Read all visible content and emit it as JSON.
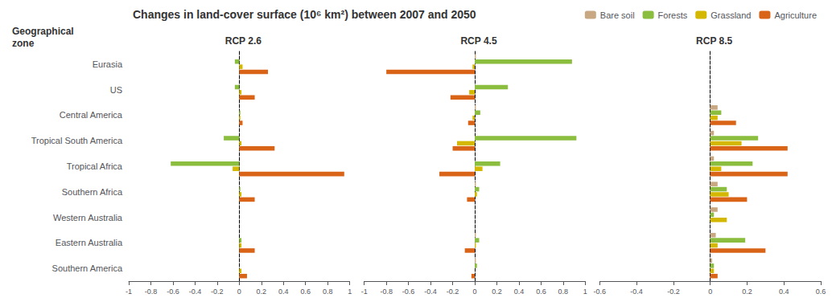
{
  "chart_data": [
    {
      "type": "bar",
      "orientation": "horizontal",
      "title": "Changes in land-cover surface (10⁶ km²) between 2007 and 2050",
      "ylabel": "Geographical\nzone",
      "subtitle": "RCP 2.6",
      "categories": [
        "Eurasia",
        "US",
        "Central America",
        "Tropical South America",
        "Tropical Africa",
        "Southern Africa",
        "Western Australia",
        "Eastern Australia",
        "Southern America"
      ],
      "series": [
        {
          "name": "Bare soil",
          "color": "#C8A882",
          "values": [
            0.0,
            0.0,
            0.0,
            0.0,
            0.0,
            0.0,
            0.0,
            0.0,
            0.0
          ]
        },
        {
          "name": "Forests",
          "color": "#8BBD3E",
          "values": [
            -0.04,
            -0.04,
            0.01,
            -0.14,
            -0.62,
            0.01,
            0.0,
            0.02,
            0.0
          ]
        },
        {
          "name": "Grassland",
          "color": "#D4B800",
          "values": [
            0.03,
            0.02,
            0.01,
            0.02,
            -0.06,
            0.02,
            0.0,
            0.02,
            0.02
          ]
        },
        {
          "name": "Agriculture",
          "color": "#D96418",
          "values": [
            0.26,
            0.14,
            0.03,
            0.32,
            0.95,
            0.14,
            0.0,
            0.14,
            0.07
          ]
        }
      ],
      "xlim": [
        -1,
        1
      ],
      "xticks": [
        -1,
        -0.8,
        -0.6,
        -0.4,
        -0.2,
        0,
        0.2,
        0.4,
        0.6,
        0.8,
        1
      ],
      "grid": false
    },
    {
      "type": "bar",
      "orientation": "horizontal",
      "subtitle": "RCP 4.5",
      "categories": [
        "Eurasia",
        "US",
        "Central America",
        "Tropical South America",
        "Tropical Africa",
        "Southern Africa",
        "Western Australia",
        "Eastern Australia",
        "Southern America"
      ],
      "series": [
        {
          "name": "Bare soil",
          "color": "#C8A882",
          "values": [
            0.01,
            0.0,
            0.01,
            0.0,
            0.0,
            0.01,
            0.0,
            0.01,
            0.01
          ]
        },
        {
          "name": "Forests",
          "color": "#8BBD3E",
          "values": [
            0.88,
            0.3,
            0.05,
            0.92,
            0.23,
            0.04,
            0.0,
            0.04,
            0.02
          ]
        },
        {
          "name": "Grassland",
          "color": "#D4B800",
          "values": [
            -0.02,
            -0.05,
            -0.02,
            -0.16,
            0.07,
            0.02,
            0.0,
            0.01,
            0.0
          ]
        },
        {
          "name": "Agriculture",
          "color": "#D96418",
          "values": [
            -0.8,
            -0.22,
            -0.06,
            -0.2,
            -0.32,
            -0.07,
            0.0,
            -0.09,
            -0.03
          ]
        }
      ],
      "xlim": [
        -1,
        1
      ],
      "xticks": [
        -1,
        -0.8,
        -0.6,
        -0.4,
        -0.2,
        0,
        0.2,
        0.4,
        0.6,
        0.8,
        1
      ],
      "grid": false
    },
    {
      "type": "bar",
      "orientation": "horizontal",
      "subtitle": "RCP 8.5",
      "categories": [
        "Eurasia",
        "US",
        "Central America",
        "Tropical South America",
        "Tropical Africa",
        "Southern Africa",
        "Western Australia",
        "Eastern Australia",
        "Southern America"
      ],
      "series": [
        {
          "name": "Bare soil",
          "color": "#C8A882",
          "values": [
            0.0,
            0.0,
            0.04,
            0.02,
            0.02,
            0.04,
            0.04,
            0.03,
            0.01
          ]
        },
        {
          "name": "Forests",
          "color": "#8BBD3E",
          "values": [
            0.0,
            0.0,
            0.06,
            0.26,
            0.23,
            0.09,
            0.02,
            0.19,
            0.02
          ]
        },
        {
          "name": "Grassland",
          "color": "#D4B800",
          "values": [
            0.0,
            0.0,
            0.04,
            0.17,
            0.06,
            0.1,
            0.09,
            0.04,
            0.02
          ]
        },
        {
          "name": "Agriculture",
          "color": "#D96418",
          "values": [
            0.0,
            0.0,
            0.14,
            0.42,
            0.42,
            0.2,
            0.0,
            0.3,
            0.04
          ]
        }
      ],
      "xlim": [
        -0.6,
        0.6
      ],
      "xticks": [
        -0.6,
        -0.4,
        -0.2,
        0,
        0.2,
        0.4,
        0.6
      ],
      "legend": "upper right",
      "grid": false
    }
  ]
}
